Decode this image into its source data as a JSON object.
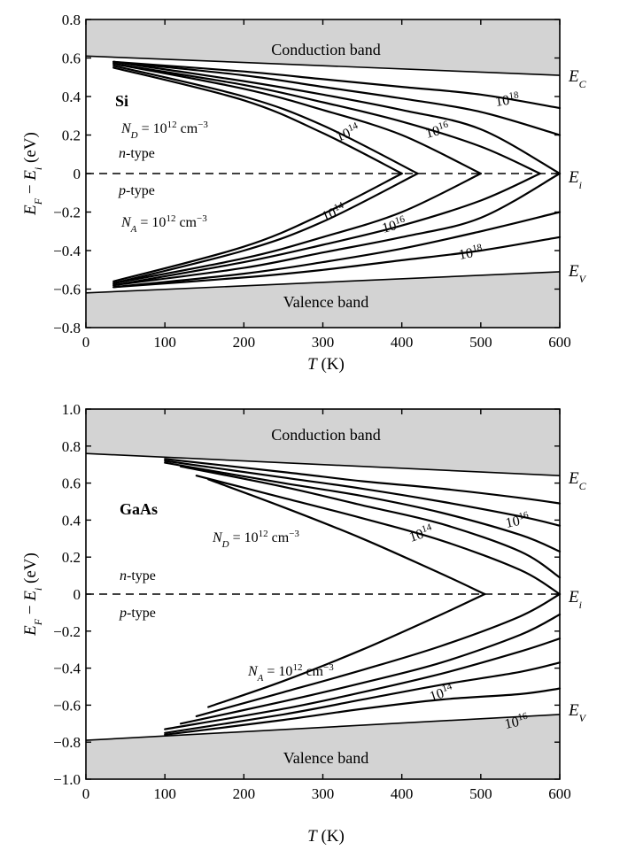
{
  "chart_data": [
    {
      "type": "line",
      "material": "Si",
      "xlabel_var": "T",
      "xlabel_unit": " (K)",
      "ylabel_text": "E_F − E_i (eV)",
      "xlim": [
        0,
        600
      ],
      "ylim": [
        -0.8,
        0.8
      ],
      "xticks": [
        0,
        100,
        200,
        300,
        400,
        500,
        600
      ],
      "yticks": [
        0.8,
        0.6,
        0.4,
        0.2,
        0,
        -0.2,
        -0.4,
        -0.6,
        -0.8
      ],
      "ytick_labels": [
        "0.8",
        "0.6",
        "0.4",
        "0.2",
        "0",
        "−0.2",
        "−0.4",
        "−0.6",
        "−0.8"
      ],
      "band_labels": {
        "conduction": "Conduction band",
        "valence": "Valence band"
      },
      "edge_labels": {
        "ec": "E",
        "ec_sub": "C",
        "ei": "E",
        "ei_sub": "i",
        "ev": "E",
        "ev_sub": "V"
      },
      "type_labels": {
        "n": "n",
        "n_rest": "-type",
        "p": "p",
        "p_rest": "-type"
      },
      "doping_labels": {
        "nd_sym": "N",
        "nd_sub": "D",
        "na_sym": "N",
        "na_sub": "A",
        "eq": " = 10",
        "exp12": "12",
        "unit": " cm",
        "unit_exp": "−3",
        "base": "10",
        "e14": "14",
        "e16": "16",
        "e18": "18"
      },
      "edges": {
        "Ec": {
          "x": [
            0,
            600
          ],
          "y": [
            0.61,
            0.51
          ]
        },
        "Ev": {
          "x": [
            0,
            600
          ],
          "y": [
            -0.62,
            -0.51
          ]
        }
      },
      "n_series": [
        {
          "x": [
            35,
            200,
            300,
            400
          ],
          "y": [
            0.55,
            0.38,
            0.21,
            0.0
          ]
        },
        {
          "x": [
            35,
            200,
            300,
            420
          ],
          "y": [
            0.56,
            0.4,
            0.25,
            0.0
          ]
        },
        {
          "x": [
            35,
            200,
            300,
            400,
            500
          ],
          "y": [
            0.57,
            0.44,
            0.33,
            0.2,
            0.0
          ]
        },
        {
          "x": [
            35,
            200,
            300,
            400,
            500,
            575
          ],
          "y": [
            0.57,
            0.46,
            0.37,
            0.27,
            0.14,
            0.0
          ]
        },
        {
          "x": [
            35,
            200,
            300,
            400,
            500,
            600
          ],
          "y": [
            0.58,
            0.48,
            0.41,
            0.33,
            0.23,
            0.0
          ]
        },
        {
          "x": [
            35,
            200,
            300,
            400,
            500,
            600
          ],
          "y": [
            0.58,
            0.51,
            0.45,
            0.39,
            0.32,
            0.2
          ]
        },
        {
          "x": [
            35,
            200,
            300,
            400,
            500,
            600
          ],
          "y": [
            0.58,
            0.53,
            0.49,
            0.45,
            0.41,
            0.34
          ]
        }
      ],
      "p_series": [
        {
          "x": [
            35,
            200,
            300,
            400
          ],
          "y": [
            -0.56,
            -0.38,
            -0.21,
            0.0
          ]
        },
        {
          "x": [
            35,
            200,
            300,
            420
          ],
          "y": [
            -0.57,
            -0.4,
            -0.25,
            0.0
          ]
        },
        {
          "x": [
            35,
            200,
            300,
            400,
            500
          ],
          "y": [
            -0.57,
            -0.44,
            -0.33,
            -0.2,
            0.0
          ]
        },
        {
          "x": [
            35,
            200,
            300,
            400,
            500,
            575
          ],
          "y": [
            -0.58,
            -0.46,
            -0.37,
            -0.27,
            -0.14,
            0.0
          ]
        },
        {
          "x": [
            35,
            200,
            300,
            400,
            500,
            600
          ],
          "y": [
            -0.58,
            -0.49,
            -0.41,
            -0.33,
            -0.23,
            0.0
          ]
        },
        {
          "x": [
            35,
            200,
            300,
            400,
            500,
            600
          ],
          "y": [
            -0.59,
            -0.52,
            -0.46,
            -0.39,
            -0.3,
            -0.2
          ]
        },
        {
          "x": [
            35,
            200,
            300,
            400,
            500,
            600
          ],
          "y": [
            -0.59,
            -0.54,
            -0.5,
            -0.45,
            -0.4,
            -0.33
          ]
        }
      ]
    },
    {
      "type": "line",
      "material": "GaAs",
      "xlabel_var": "T",
      "xlabel_unit": " (K)",
      "ylabel_text": "E_F − E_i (eV)",
      "xlim": [
        0,
        600
      ],
      "ylim": [
        -1.0,
        1.0
      ],
      "xticks": [
        0,
        100,
        200,
        300,
        400,
        500,
        600
      ],
      "yticks": [
        1.0,
        0.8,
        0.6,
        0.4,
        0.2,
        0,
        -0.2,
        -0.4,
        -0.6,
        -0.8,
        -1.0
      ],
      "ytick_labels": [
        "1.0",
        "0.8",
        "0.6",
        "0.4",
        "0.2",
        "0",
        "−0.2",
        "−0.4",
        "−0.6",
        "−0.8",
        "−1.0"
      ],
      "band_labels": {
        "conduction": "Conduction band",
        "valence": "Valence band"
      },
      "edge_labels": {
        "ec": "E",
        "ec_sub": "C",
        "ei": "E",
        "ei_sub": "i",
        "ev": "E",
        "ev_sub": "V"
      },
      "type_labels": {
        "n": "n",
        "n_rest": "-type",
        "p": "p",
        "p_rest": "-type"
      },
      "doping_labels": {
        "nd_sym": "N",
        "nd_sub": "D",
        "na_sym": "N",
        "na_sub": "A",
        "eq": " = 10",
        "exp12": "12",
        "unit": " cm",
        "unit_exp": "−3",
        "base": "10",
        "e14": "14",
        "e16": "16"
      },
      "edges": {
        "Ec": {
          "x": [
            0,
            600
          ],
          "y": [
            0.76,
            0.64
          ]
        },
        "Ev": {
          "x": [
            0,
            600
          ],
          "y": [
            -0.79,
            -0.65
          ]
        }
      },
      "n_series": [
        {
          "x": [
            155,
            250,
            350,
            450,
            505
          ],
          "y": [
            0.62,
            0.47,
            0.3,
            0.11,
            0.0
          ]
        },
        {
          "x": [
            140,
            250,
            350,
            450,
            550,
            600
          ],
          "y": [
            0.64,
            0.52,
            0.41,
            0.29,
            0.13,
            0.0
          ]
        },
        {
          "x": [
            120,
            250,
            350,
            450,
            550,
            600
          ],
          "y": [
            0.69,
            0.58,
            0.48,
            0.38,
            0.23,
            0.09
          ]
        },
        {
          "x": [
            100,
            250,
            350,
            450,
            550,
            600
          ],
          "y": [
            0.71,
            0.6,
            0.53,
            0.44,
            0.32,
            0.23
          ]
        },
        {
          "x": [
            100,
            250,
            350,
            450,
            550,
            600
          ],
          "y": [
            0.72,
            0.63,
            0.57,
            0.5,
            0.42,
            0.37
          ]
        },
        {
          "x": [
            100,
            250,
            350,
            450,
            550,
            600
          ],
          "y": [
            0.73,
            0.66,
            0.61,
            0.57,
            0.52,
            0.49
          ]
        }
      ],
      "p_series": [
        {
          "x": [
            155,
            250,
            350,
            450,
            505
          ],
          "y": [
            -0.61,
            -0.47,
            -0.3,
            -0.11,
            0.0
          ]
        },
        {
          "x": [
            140,
            250,
            350,
            450,
            550,
            600
          ],
          "y": [
            -0.66,
            -0.53,
            -0.41,
            -0.28,
            -0.12,
            0.0
          ]
        },
        {
          "x": [
            120,
            250,
            350,
            450,
            550,
            600
          ],
          "y": [
            -0.7,
            -0.58,
            -0.48,
            -0.37,
            -0.22,
            -0.11
          ]
        },
        {
          "x": [
            100,
            250,
            350,
            450,
            550,
            600
          ],
          "y": [
            -0.73,
            -0.62,
            -0.53,
            -0.43,
            -0.31,
            -0.24
          ]
        },
        {
          "x": [
            100,
            250,
            350,
            450,
            550,
            600
          ],
          "y": [
            -0.75,
            -0.65,
            -0.57,
            -0.49,
            -0.42,
            -0.37
          ]
        },
        {
          "x": [
            100,
            250,
            350,
            450,
            550,
            600
          ],
          "y": [
            -0.76,
            -0.68,
            -0.62,
            -0.57,
            -0.54,
            -0.51
          ]
        }
      ]
    }
  ],
  "colors": {
    "band_fill": "#d3d3d3",
    "line": "#000000",
    "background": "#ffffff"
  }
}
